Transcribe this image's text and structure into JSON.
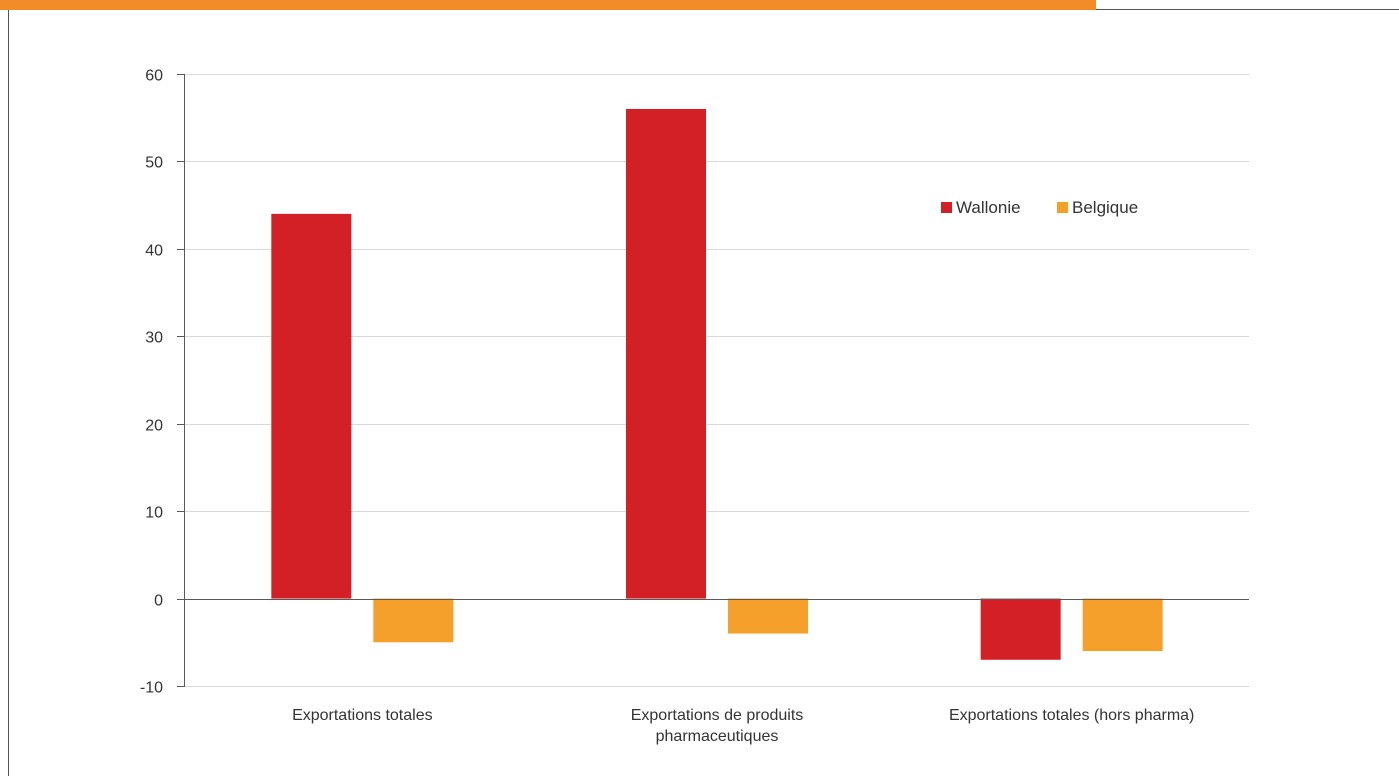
{
  "colors": {
    "top_band": "#f28c28",
    "frame": "#555555",
    "gridline": "#d9d9d9",
    "zero_line": "#595959"
  },
  "chart_data": {
    "type": "bar",
    "categories": [
      [
        "Exportations totales"
      ],
      [
        "Exportations de produits",
        "pharmaceutiques"
      ],
      [
        "Exportations totales (hors pharma)"
      ]
    ],
    "series": [
      {
        "name": "Wallonie",
        "color": "#d32027",
        "values": [
          44,
          56,
          -7
        ]
      },
      {
        "name": "Belgique",
        "color": "#f5a02a",
        "values": [
          -5,
          -4,
          -6
        ]
      }
    ],
    "ylim": [
      -10,
      60
    ],
    "yticks": [
      60,
      50,
      40,
      30,
      20,
      10,
      0,
      -10
    ],
    "grid": true,
    "legend": "top-right",
    "title": "",
    "xlabel": "",
    "ylabel": ""
  }
}
